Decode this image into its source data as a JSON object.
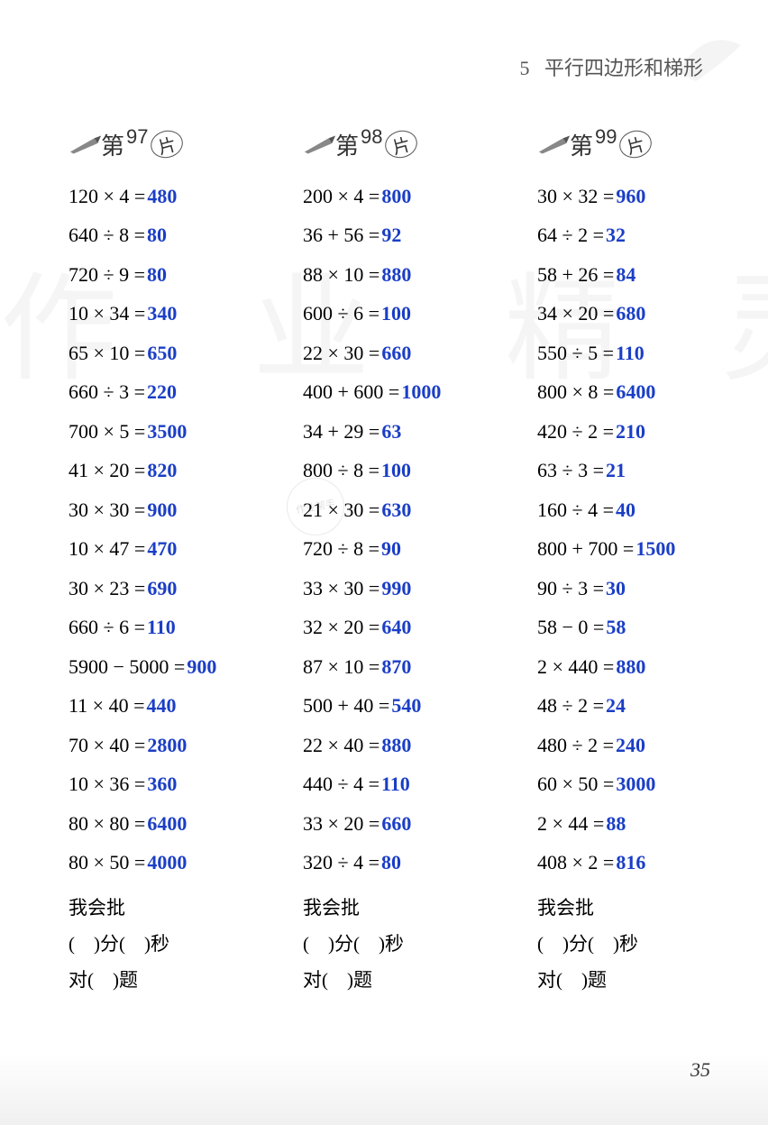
{
  "header": {
    "chapter_num": "5",
    "chapter_title": "平行四边形和梯形"
  },
  "page_number": "35",
  "answer_color": "#1a3ec6",
  "expr_color": "#000000",
  "columns": [
    {
      "prefix": "第",
      "number": "97",
      "suffix": "片",
      "rows": [
        {
          "expr": "120 × 4 =",
          "ans": "480"
        },
        {
          "expr": "640 ÷ 8 =",
          "ans": "80"
        },
        {
          "expr": "720 ÷ 9 =",
          "ans": "80"
        },
        {
          "expr": "10 × 34 =",
          "ans": "340"
        },
        {
          "expr": "65 × 10 =",
          "ans": "650"
        },
        {
          "expr": "660 ÷ 3 =",
          "ans": "220"
        },
        {
          "expr": "700 × 5 =",
          "ans": "3500"
        },
        {
          "expr": "41 × 20 =",
          "ans": "820"
        },
        {
          "expr": "30 × 30 =",
          "ans": "900"
        },
        {
          "expr": "10 × 47 =",
          "ans": "470"
        },
        {
          "expr": "30 × 23 =",
          "ans": "690"
        },
        {
          "expr": "660 ÷ 6 =",
          "ans": "110"
        },
        {
          "expr": "5900 − 5000 =",
          "ans": "900"
        },
        {
          "expr": "11 × 40 =",
          "ans": "440"
        },
        {
          "expr": "70 × 40 =",
          "ans": "2800"
        },
        {
          "expr": "10 × 36 =",
          "ans": "360"
        },
        {
          "expr": "80 × 80 =",
          "ans": "6400"
        },
        {
          "expr": "80 × 50 =",
          "ans": "4000"
        }
      ],
      "score": {
        "l1": "我会批",
        "l2": "(　)分(　)秒",
        "l3": "对(　)题"
      }
    },
    {
      "prefix": "第",
      "number": "98",
      "suffix": "片",
      "rows": [
        {
          "expr": "200 × 4 =",
          "ans": "800"
        },
        {
          "expr": "36 + 56 =",
          "ans": "92"
        },
        {
          "expr": "88 × 10 =",
          "ans": "880"
        },
        {
          "expr": "600 ÷ 6 =",
          "ans": "100"
        },
        {
          "expr": "22 × 30 =",
          "ans": "660"
        },
        {
          "expr": "400 + 600 =",
          "ans": "1000"
        },
        {
          "expr": "34 + 29 =",
          "ans": "63"
        },
        {
          "expr": "800 ÷ 8 =",
          "ans": "100"
        },
        {
          "expr": "21 × 30 =",
          "ans": "630"
        },
        {
          "expr": "720 ÷ 8 =",
          "ans": "90"
        },
        {
          "expr": "33 × 30 =",
          "ans": "990"
        },
        {
          "expr": "32 × 20 =",
          "ans": "640"
        },
        {
          "expr": "87 × 10 =",
          "ans": "870"
        },
        {
          "expr": "500 + 40 =",
          "ans": "540"
        },
        {
          "expr": "22 × 40 =",
          "ans": "880"
        },
        {
          "expr": "440 ÷ 4 =",
          "ans": "110"
        },
        {
          "expr": "33 × 20 =",
          "ans": "660"
        },
        {
          "expr": "320 ÷ 4 =",
          "ans": "80"
        }
      ],
      "score": {
        "l1": "我会批",
        "l2": "(　)分(　)秒",
        "l3": "对(　)题"
      }
    },
    {
      "prefix": "第",
      "number": "99",
      "suffix": "片",
      "rows": [
        {
          "expr": "30 × 32 =",
          "ans": "960"
        },
        {
          "expr": "64 ÷ 2 =",
          "ans": "32"
        },
        {
          "expr": "58 + 26 =",
          "ans": "84"
        },
        {
          "expr": "34 × 20 =",
          "ans": "680"
        },
        {
          "expr": "550 ÷ 5 =",
          "ans": "110"
        },
        {
          "expr": "800 × 8 =",
          "ans": "6400"
        },
        {
          "expr": "420 ÷ 2 =",
          "ans": "210"
        },
        {
          "expr": "63 ÷ 3 =",
          "ans": "21"
        },
        {
          "expr": "160 ÷ 4 =",
          "ans": "40"
        },
        {
          "expr": "800 + 700 =",
          "ans": "1500"
        },
        {
          "expr": "90 ÷ 3 =",
          "ans": "30"
        },
        {
          "expr": "58 − 0 =",
          "ans": "58"
        },
        {
          "expr": "2 × 440 =",
          "ans": "880"
        },
        {
          "expr": "48 ÷ 2 =",
          "ans": "24"
        },
        {
          "expr": "480 ÷ 2 =",
          "ans": "240"
        },
        {
          "expr": "60 × 50 =",
          "ans": "3000"
        },
        {
          "expr": "2 × 44 =",
          "ans": "88"
        },
        {
          "expr": "408 × 2 =",
          "ans": "816"
        }
      ],
      "score": {
        "l1": "我会批",
        "l2": "(　)分(　)秒",
        "l3": "对(　)题"
      }
    }
  ],
  "watermark_chars": [
    "作",
    "业",
    "精",
    "灵"
  ],
  "stamp_text": "作业帮手"
}
